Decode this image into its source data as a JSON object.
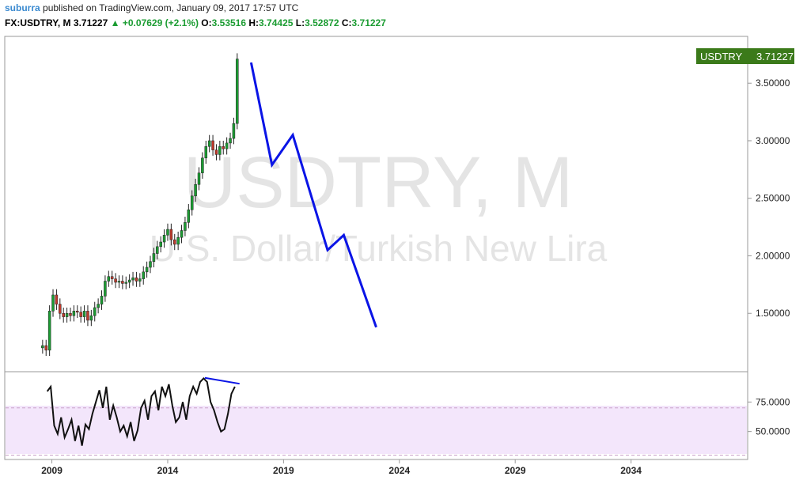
{
  "header": {
    "author": "suburra",
    "published": "published on TradingView.com, January 09, 2017 17:57 UTC",
    "symbol": "FX:USDTRY, M",
    "last": "3.71227",
    "arrow": "▲",
    "change": "+0.07629 (+2.1%)",
    "o_label": "O:",
    "o": "3.53516",
    "h_label": "H:",
    "h": "3.74425",
    "l_label": "L:",
    "l": "3.52872",
    "c_label": "C:",
    "c": "3.71227"
  },
  "watermark": {
    "line1": "USDTRY, M",
    "line2": "U.S. Dollar/Turkish New Lira"
  },
  "price_tag": {
    "symbol": "USDTRY",
    "value": "3.71227",
    "color": "#3b7a1a"
  },
  "colors": {
    "up": "#1b9c32",
    "down": "#c0392b",
    "projection": "#0a14e6",
    "oscillator_band": "#f3e6fb"
  },
  "chart_data": [
    {
      "type": "line",
      "title": "USDTRY, M",
      "ylabel": "",
      "xlabel": "",
      "ylim": [
        1.0,
        3.9
      ],
      "xlim": [
        2007.0,
        2039.0
      ],
      "y_ticks": [
        "3.50000",
        "3.00000",
        "2.50000",
        "2.00000",
        "1.50000"
      ],
      "y_tick_values": [
        3.5,
        3.0,
        2.5,
        2.0,
        1.5
      ],
      "x_ticks": [
        "2009",
        "2014",
        "2019",
        "2024",
        "2029",
        "2034"
      ],
      "x_tick_values": [
        2009,
        2014,
        2019,
        2024,
        2029,
        2034
      ],
      "series": [
        {
          "x": [
            2008.6,
            2008.75,
            2008.9,
            2009.05,
            2009.2,
            2009.35,
            2009.5,
            2009.65,
            2009.8,
            2009.95,
            2010.1,
            2010.25,
            2010.4,
            2010.55,
            2010.7,
            2010.85,
            2011.0,
            2011.15,
            2011.3,
            2011.45,
            2011.6,
            2011.75,
            2011.9,
            2012.05,
            2012.2,
            2012.35,
            2012.5,
            2012.65,
            2012.8,
            2012.95,
            2013.1,
            2013.25,
            2013.4,
            2013.55,
            2013.7,
            2013.85,
            2014.0,
            2014.15,
            2014.3,
            2014.45,
            2014.6,
            2014.75,
            2014.9,
            2015.05,
            2015.2,
            2015.35,
            2015.5,
            2015.65,
            2015.8,
            2015.95,
            2016.1,
            2016.25,
            2016.4,
            2016.55,
            2016.7,
            2016.85,
            2017.0
          ],
          "y": [
            1.22,
            1.18,
            1.52,
            1.66,
            1.58,
            1.5,
            1.47,
            1.5,
            1.48,
            1.52,
            1.51,
            1.47,
            1.52,
            1.44,
            1.48,
            1.55,
            1.58,
            1.65,
            1.78,
            1.82,
            1.8,
            1.77,
            1.78,
            1.76,
            1.77,
            1.79,
            1.81,
            1.78,
            1.8,
            1.86,
            1.9,
            1.95,
            2.02,
            2.08,
            2.12,
            2.18,
            2.23,
            2.14,
            2.1,
            2.16,
            2.22,
            2.29,
            2.4,
            2.52,
            2.62,
            2.72,
            2.85,
            2.95,
            3.0,
            2.92,
            2.88,
            2.95,
            2.93,
            2.98,
            3.02,
            3.15,
            3.71
          ]
        },
        {
          "name": "",
          "x": [
            2017.6,
            2018.5,
            2019.4,
            2020.9,
            2021.6,
            2023.0
          ],
          "y": [
            3.68,
            2.79,
            3.05,
            2.05,
            2.18,
            1.38
          ]
        }
      ]
    },
    {
      "type": "line",
      "ylim": [
        27,
        100
      ],
      "y_ticks": [
        "75.0000",
        "50.0000"
      ],
      "y_tick_values": [
        75,
        50
      ],
      "band": [
        30,
        70
      ],
      "series": [
        {
          "x": [
            2008.8,
            2008.95,
            2009.1,
            2009.25,
            2009.4,
            2009.55,
            2009.7,
            2009.85,
            2010.0,
            2010.15,
            2010.3,
            2010.45,
            2010.6,
            2010.75,
            2010.9,
            2011.05,
            2011.2,
            2011.35,
            2011.5,
            2011.65,
            2011.8,
            2011.95,
            2012.1,
            2012.25,
            2012.4,
            2012.55,
            2012.7,
            2012.85,
            2013.0,
            2013.15,
            2013.3,
            2013.45,
            2013.6,
            2013.75,
            2013.9,
            2014.05,
            2014.2,
            2014.35,
            2014.5,
            2014.65,
            2014.8,
            2014.95,
            2015.1,
            2015.25,
            2015.4,
            2015.55,
            2015.7,
            2015.85,
            2016.0,
            2016.15,
            2016.3,
            2016.45,
            2016.6,
            2016.75,
            2016.9
          ],
          "y": [
            84,
            88,
            55,
            48,
            62,
            45,
            52,
            60,
            42,
            55,
            38,
            56,
            52,
            65,
            75,
            85,
            70,
            88,
            60,
            72,
            62,
            50,
            55,
            46,
            58,
            42,
            51,
            70,
            76,
            60,
            80,
            84,
            68,
            88,
            80,
            90,
            72,
            58,
            62,
            75,
            60,
            80,
            88,
            82,
            92,
            95,
            92,
            75,
            68,
            58,
            50,
            52,
            65,
            82,
            88
          ]
        },
        {
          "name": "",
          "x": [
            2015.6,
            2017.1
          ],
          "y": [
            95.5,
            90.5
          ]
        }
      ]
    }
  ]
}
